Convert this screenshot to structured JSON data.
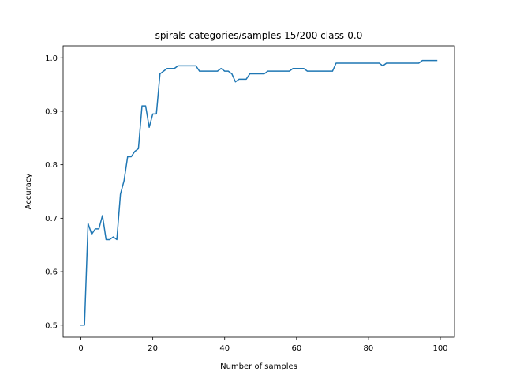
{
  "chart_data": {
    "type": "line",
    "title": "spirals categories/samples 15/200 class-0.0",
    "xlabel": "Number of samples",
    "ylabel": "Accuracy",
    "xlim": [
      -4.95,
      103.95
    ],
    "ylim": [
      0.4775,
      1.0225
    ],
    "grid": false,
    "x_ticks": [
      {
        "value": 0,
        "label": "0"
      },
      {
        "value": 20,
        "label": "20"
      },
      {
        "value": 40,
        "label": "40"
      },
      {
        "value": 60,
        "label": "60"
      },
      {
        "value": 80,
        "label": "80"
      },
      {
        "value": 100,
        "label": "100"
      }
    ],
    "y_ticks": [
      {
        "value": 0.5,
        "label": "0.5"
      },
      {
        "value": 0.6,
        "label": "0.6"
      },
      {
        "value": 0.7,
        "label": "0.7"
      },
      {
        "value": 0.8,
        "label": "0.8"
      },
      {
        "value": 0.9,
        "label": "0.9"
      },
      {
        "value": 1.0,
        "label": "1.0"
      }
    ],
    "series": [
      {
        "name": "accuracy",
        "color": "#1f77b4",
        "x": [
          0,
          1,
          2,
          3,
          4,
          5,
          6,
          7,
          8,
          9,
          10,
          11,
          12,
          13,
          14,
          15,
          16,
          17,
          18,
          19,
          20,
          21,
          22,
          23,
          24,
          25,
          26,
          27,
          28,
          29,
          30,
          31,
          32,
          33,
          34,
          35,
          36,
          37,
          38,
          39,
          40,
          41,
          42,
          43,
          44,
          45,
          46,
          47,
          48,
          49,
          50,
          51,
          52,
          53,
          54,
          55,
          56,
          57,
          58,
          59,
          60,
          61,
          62,
          63,
          64,
          65,
          66,
          67,
          68,
          69,
          70,
          71,
          72,
          73,
          74,
          75,
          76,
          77,
          78,
          79,
          80,
          81,
          82,
          83,
          84,
          85,
          86,
          87,
          88,
          89,
          90,
          91,
          92,
          93,
          94,
          95,
          96,
          97,
          98,
          99
        ],
        "values": [
          0.5,
          0.5,
          0.69,
          0.67,
          0.68,
          0.68,
          0.705,
          0.66,
          0.66,
          0.665,
          0.66,
          0.745,
          0.77,
          0.815,
          0.815,
          0.825,
          0.83,
          0.91,
          0.91,
          0.87,
          0.895,
          0.895,
          0.97,
          0.975,
          0.98,
          0.98,
          0.98,
          0.985,
          0.985,
          0.985,
          0.985,
          0.985,
          0.985,
          0.975,
          0.975,
          0.975,
          0.975,
          0.975,
          0.975,
          0.98,
          0.975,
          0.975,
          0.97,
          0.955,
          0.96,
          0.96,
          0.96,
          0.97,
          0.97,
          0.97,
          0.97,
          0.97,
          0.975,
          0.975,
          0.975,
          0.975,
          0.975,
          0.975,
          0.975,
          0.98,
          0.98,
          0.98,
          0.98,
          0.975,
          0.975,
          0.975,
          0.975,
          0.975,
          0.975,
          0.975,
          0.975,
          0.99,
          0.99,
          0.99,
          0.99,
          0.99,
          0.99,
          0.99,
          0.99,
          0.99,
          0.99,
          0.99,
          0.99,
          0.99,
          0.985,
          0.99,
          0.99,
          0.99,
          0.99,
          0.99,
          0.99,
          0.99,
          0.99,
          0.99,
          0.99,
          0.995,
          0.995,
          0.995,
          0.995,
          0.995
        ]
      }
    ]
  }
}
